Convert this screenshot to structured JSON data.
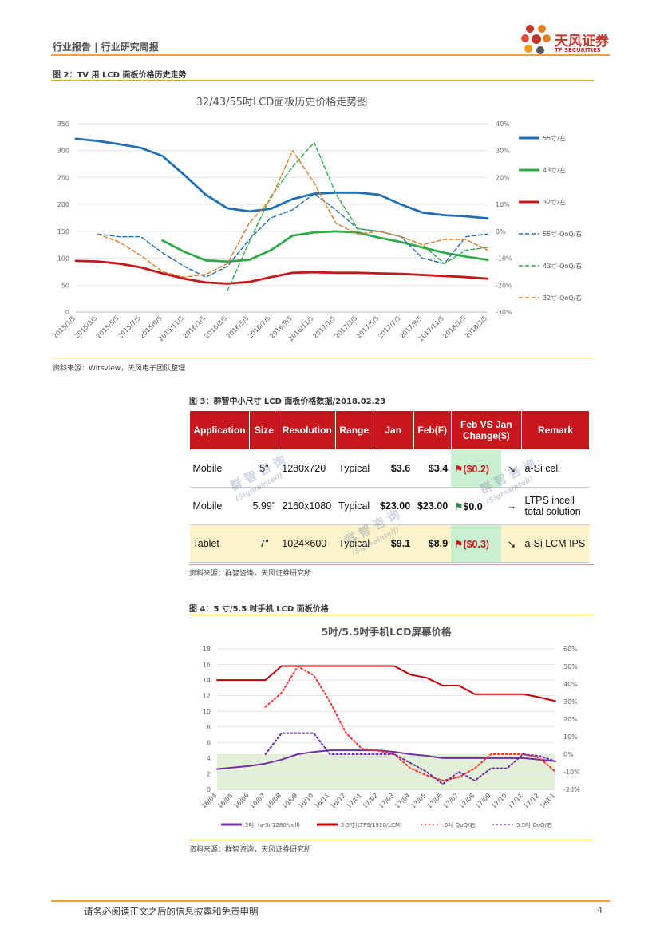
{
  "header": {
    "title": "行业报告 | 行业研究周报",
    "brand_cn": "天风证券",
    "brand_en": "TF SECURITIES"
  },
  "fig2": {
    "label": "图 2：TV 用 LCD 面板价格历史走势",
    "source": "资料来源：Witsview，天风电子团队整理"
  },
  "fig3": {
    "label": "图 3：群智中小尺寸 LCD 面板价格数据/2018.02.23",
    "source": "资料来源：群智咨询，天风证券研究所",
    "watermark": [
      "群 智 咨 询",
      "(Sigmaintell)"
    ],
    "headers": [
      "Application",
      "Size",
      "Resolution",
      "Range",
      "Jan",
      "Feb(F)",
      "Feb VS Jan Change($)",
      "",
      "Remark"
    ],
    "rows": [
      {
        "app": "Mobile",
        "size": "5\"",
        "res": "1280x720",
        "range": "Typical",
        "jan": "$3.6",
        "feb": "$3.4",
        "change": "($0.2)",
        "arrow": "↘",
        "remark": "a-Si cell"
      },
      {
        "app": "Mobile",
        "size": "5.99\"",
        "res": "2160x1080",
        "range": "Typical",
        "jan": "$23.00",
        "feb": "$23.00",
        "change": "$0.0",
        "arrow": "→",
        "remark": "LTPS incell total solution"
      },
      {
        "app": "Tablet",
        "size": "7\"",
        "res": "1024×600",
        "range": "Typical",
        "jan": "$9.1",
        "feb": "$8.9",
        "change": "($0.3)",
        "arrow": "↘",
        "remark": "a-Si LCM IPS"
      }
    ]
  },
  "fig4": {
    "label": "图 4：5 寸/5.5 吋手机 LCD 面板价格",
    "source": "资料来源：群智咨询，天风证券研究所"
  },
  "footer": {
    "disclaimer": "请务必阅读正文之后的信息披露和免责申明",
    "page": "4"
  },
  "chart_data": [
    {
      "type": "line",
      "title": "32/43/55吋LCD面板历史价格走势图",
      "x": [
        "2015/1/5",
        "2015/3/5",
        "2015/5/5",
        "2015/7/5",
        "2015/9/5",
        "2015/11/5",
        "2016/1/5",
        "2016/3/5",
        "2016/5/5",
        "2016/7/5",
        "2016/9/5",
        "2016/11/5",
        "2017/1/5",
        "2017/3/5",
        "2017/5/5",
        "2017/7/5",
        "2017/9/5",
        "2017/11/5",
        "2018/1/5",
        "2018/3/5"
      ],
      "ylim": [
        0,
        350
      ],
      "y2lim": [
        -30,
        40
      ],
      "yticks": [
        "0",
        "50",
        "100",
        "150",
        "200",
        "250",
        "300",
        "350"
      ],
      "y2ticks": [
        "-30%",
        "-20%",
        "-10%",
        "0%",
        "10%",
        "20%",
        "30%",
        "40%"
      ],
      "series": [
        {
          "name": "55寸/左",
          "axis": "left",
          "color": "#1f6fb5",
          "style": "solid",
          "values": [
            322,
            318,
            312,
            305,
            290,
            255,
            218,
            193,
            187,
            192,
            210,
            220,
            222,
            222,
            218,
            200,
            185,
            180,
            178,
            174
          ]
        },
        {
          "name": "43寸/左",
          "axis": "left",
          "color": "#2eaa4a",
          "style": "solid",
          "values": [
            null,
            null,
            null,
            null,
            133,
            112,
            96,
            94,
            97,
            115,
            142,
            148,
            150,
            148,
            138,
            130,
            120,
            110,
            103,
            97
          ]
        },
        {
          "name": "32寸/左",
          "axis": "left",
          "color": "#c8161d",
          "style": "solid",
          "values": [
            95,
            94,
            90,
            83,
            72,
            62,
            55,
            53,
            56,
            65,
            73,
            74,
            73,
            73,
            72,
            71,
            69,
            67,
            65,
            62
          ]
        },
        {
          "name": "55寸-QoQ/右",
          "axis": "right",
          "color": "#1f6fb5",
          "style": "dash",
          "values": [
            null,
            -1,
            -2,
            -2,
            -8,
            -13,
            -17,
            -13,
            -3,
            5,
            8,
            14,
            8,
            1,
            0,
            -2,
            -10,
            -12,
            -2,
            -1
          ]
        },
        {
          "name": "43寸-QoQ/右",
          "axis": "right",
          "color": "#2eaa4a",
          "style": "dash",
          "values": [
            null,
            null,
            null,
            null,
            null,
            null,
            null,
            -22,
            -4,
            13,
            24,
            33,
            14,
            1,
            0,
            -2,
            -5,
            -12,
            -7,
            -6
          ]
        },
        {
          "name": "32寸-QoQ/右",
          "axis": "right",
          "color": "#e07b2a",
          "style": "dash",
          "values": [
            null,
            -1,
            -4,
            -9,
            -15,
            -17,
            -16,
            -12,
            3,
            12,
            30,
            18,
            3,
            -1,
            0,
            -2,
            -5,
            -3,
            -3,
            -7
          ]
        }
      ]
    },
    {
      "type": "line",
      "title": "5吋/5.5吋手机LCD屏幕价格",
      "x": [
        "16/04",
        "16/05",
        "16/06",
        "16/07",
        "16/08",
        "16/09",
        "16/10",
        "16/11",
        "16/12",
        "17/01",
        "17/02",
        "17/03",
        "17/04",
        "17/05",
        "17/06",
        "17/07",
        "17/08",
        "17/09",
        "17/10",
        "17/11",
        "17/12",
        "18/01"
      ],
      "ylim": [
        0,
        18
      ],
      "y2lim": [
        -20,
        60
      ],
      "yticks": [
        "0",
        "2",
        "4",
        "6",
        "8",
        "10",
        "12",
        "14",
        "16",
        "18"
      ],
      "y2ticks": [
        "-20%",
        "-10%",
        "0%",
        "10%",
        "20%",
        "30%",
        "40%",
        "50%",
        "60%"
      ],
      "series": [
        {
          "name": "5吋（a-Si/1280/cell)",
          "axis": "left",
          "color": "#7030a0",
          "style": "solid",
          "values": [
            2.6,
            2.8,
            3.0,
            3.3,
            3.8,
            4.5,
            4.8,
            5.0,
            5.0,
            5.0,
            5.0,
            4.8,
            4.5,
            4.3,
            4.0,
            4.0,
            4.0,
            4.0,
            4.0,
            4.0,
            3.8,
            3.6
          ]
        },
        {
          "name": "5.5寸(LTPS/1920/LCM)",
          "axis": "left",
          "color": "#c00000",
          "style": "solid",
          "values": [
            14,
            14,
            14,
            14,
            15.8,
            15.8,
            15.8,
            15.8,
            15.8,
            15.8,
            15.8,
            15.8,
            14.7,
            14.3,
            13.3,
            13.3,
            12.2,
            12.2,
            12.2,
            12.2,
            11.8,
            11.3
          ]
        },
        {
          "name": "5吋 QoQ/右",
          "axis": "right",
          "color": "#ff3333",
          "style": "dot",
          "values": [
            null,
            null,
            null,
            27,
            35,
            50,
            45,
            30,
            12,
            3,
            2,
            0,
            -8,
            -12,
            -15,
            -13,
            -8,
            0,
            0,
            0,
            -2,
            -10
          ]
        },
        {
          "name": "5.5吋 QoQ/右",
          "axis": "right",
          "color": "#7030a0",
          "style": "dot",
          "values": [
            null,
            null,
            null,
            0,
            12,
            12,
            12,
            0,
            0,
            0,
            0,
            0,
            -5,
            -10,
            -17,
            -10,
            -15,
            -8,
            -8,
            0,
            -1,
            -4
          ]
        }
      ]
    }
  ]
}
